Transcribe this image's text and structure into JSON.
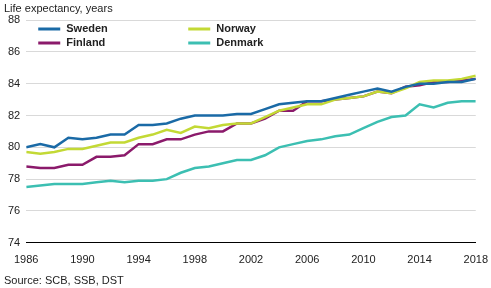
{
  "chart_data": {
    "type": "line",
    "ylabel": "Life expectancy, years",
    "source": "Source: SCB, SSB, DST",
    "x": [
      1986,
      1987,
      1988,
      1989,
      1990,
      1991,
      1992,
      1993,
      1994,
      1995,
      1996,
      1997,
      1998,
      1999,
      2000,
      2001,
      2002,
      2003,
      2004,
      2005,
      2006,
      2007,
      2008,
      2009,
      2010,
      2011,
      2012,
      2013,
      2014,
      2015,
      2016,
      2017,
      2018
    ],
    "xlim": [
      1986,
      2018
    ],
    "xticks": [
      1986,
      1990,
      1994,
      1998,
      2002,
      2006,
      2010,
      2014,
      2018
    ],
    "ylim": [
      74,
      88
    ],
    "yticks": [
      74,
      76,
      78,
      80,
      82,
      84,
      86,
      88
    ],
    "grid": true,
    "legend": "upper left",
    "series": [
      {
        "name": "Sweden",
        "color": "#1a6aa6",
        "values": [
          80.0,
          80.2,
          80.0,
          80.6,
          80.5,
          80.6,
          80.8,
          80.8,
          81.4,
          81.4,
          81.5,
          81.8,
          82.0,
          82.0,
          82.0,
          82.1,
          82.1,
          82.4,
          82.7,
          82.8,
          82.9,
          82.9,
          83.1,
          83.3,
          83.5,
          83.7,
          83.5,
          83.8,
          84.0,
          84.0,
          84.1,
          84.1,
          84.3
        ]
      },
      {
        "name": "Norway",
        "color": "#c3d935",
        "values": [
          79.7,
          79.6,
          79.7,
          79.9,
          79.9,
          80.1,
          80.3,
          80.3,
          80.6,
          80.8,
          81.1,
          80.9,
          81.3,
          81.2,
          81.4,
          81.5,
          81.5,
          81.9,
          82.3,
          82.5,
          82.7,
          82.7,
          83.0,
          83.1,
          83.2,
          83.5,
          83.4,
          83.7,
          84.1,
          84.2,
          84.2,
          84.3,
          84.5
        ]
      },
      {
        "name": "Finland",
        "color": "#8b1a6b",
        "values": [
          78.8,
          78.7,
          78.7,
          78.9,
          78.9,
          79.4,
          79.4,
          79.5,
          80.2,
          80.2,
          80.5,
          80.5,
          80.8,
          81.0,
          81.0,
          81.5,
          81.5,
          81.8,
          82.3,
          82.3,
          82.9,
          82.9,
          83.0,
          83.1,
          83.2,
          83.5,
          83.4,
          83.8,
          83.9,
          84.1,
          84.1,
          84.2,
          84.3
        ]
      },
      {
        "name": "Denmark",
        "color": "#3cbfb2",
        "values": [
          77.5,
          77.6,
          77.7,
          77.7,
          77.7,
          77.8,
          77.9,
          77.8,
          77.9,
          77.9,
          78.0,
          78.4,
          78.7,
          78.8,
          79.0,
          79.2,
          79.2,
          79.5,
          80.0,
          80.2,
          80.4,
          80.5,
          80.7,
          80.8,
          81.2,
          81.6,
          81.9,
          82.0,
          82.7,
          82.5,
          82.8,
          82.9,
          82.9
        ]
      }
    ]
  }
}
